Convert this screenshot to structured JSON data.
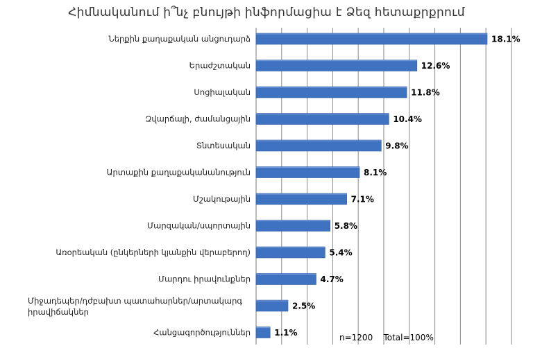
{
  "chart_data": {
    "type": "bar",
    "orientation": "horizontal",
    "title": "Հիմնականում ի՞նչ բնույթի ինֆորմացիա է Ձեզ հետաքրքրում",
    "note": "n=1200    Total=100%",
    "categories": [
      "Ներքին քաղաքական անցուդարձ",
      "Երաժշտական",
      "Սոցիալական",
      "Զվարճալի, ժամանցային",
      "Տնտեսական",
      "Արտաքին քաղաքականանություն",
      "Մշակութային",
      "Մարզական/սպորտային",
      "Առօրեական (ընկերների կյանքին վերաբերող)",
      "Մարդու իրավունքներ",
      "Միջադեպեր/դժբախտ պատահարներ/արտակարգ իրավիճակներ",
      "Հանցագործություններ"
    ],
    "values": [
      18.1,
      12.6,
      11.8,
      10.4,
      9.8,
      8.1,
      7.1,
      5.8,
      5.4,
      4.7,
      2.5,
      1.1
    ],
    "value_labels": [
      "18.1%",
      "12.6%",
      "11.8%",
      "10.4%",
      "9.8%",
      "8.1%",
      "7.1%",
      "5.8%",
      "5.4%",
      "4.7%",
      "2.5%",
      "1.1%"
    ],
    "xlim": [
      0,
      20
    ],
    "grid": "vertical",
    "bar_color": "#3f73c2",
    "grid_color": "#888888"
  }
}
